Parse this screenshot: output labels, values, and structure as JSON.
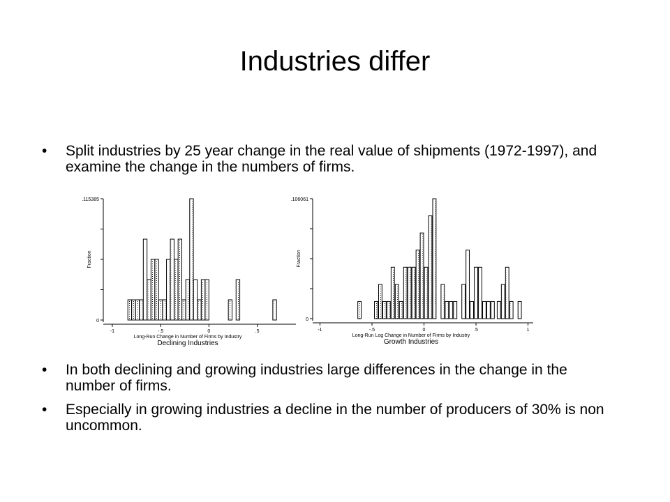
{
  "slide": {
    "title": "Industries differ",
    "bullets": [
      "Split industries by 25 year change in the real value of shipments (1972-1997), and examine the change in the numbers of firms.",
      "In both declining and growing industries large differences in the change in the number of firms.",
      "Especially in growing industries a decline in the number of producers of 30% is non uncommon."
    ]
  },
  "chart_data": [
    {
      "type": "bar",
      "ylabel": "Fraction",
      "xlabel": "Long-Run Change in Number of Firms by Industry",
      "subtitle": "Declining Industries",
      "y_tick_labels": [
        ".115385",
        "0"
      ],
      "x_tick_labels": [
        "-1",
        "-.5",
        "0",
        ".5"
      ],
      "xlim": [
        -1.05,
        0.9
      ],
      "ylim": [
        0,
        0.115385
      ],
      "bin_width": 0.0385,
      "x": [
        -0.82,
        -0.78,
        -0.74,
        -0.7,
        -0.66,
        -0.62,
        -0.58,
        -0.54,
        -0.5,
        -0.46,
        -0.42,
        -0.38,
        -0.34,
        -0.3,
        -0.26,
        -0.22,
        -0.18,
        -0.14,
        -0.1,
        -0.06,
        -0.02,
        0.02,
        0.22,
        0.3,
        0.68
      ],
      "values": [
        0.01923,
        0.01923,
        0.01923,
        0.01923,
        0.07692,
        0.03846,
        0.05769,
        0.05769,
        0.01923,
        0.01923,
        0.05769,
        0.07692,
        0.05769,
        0.07692,
        0.01923,
        0.03846,
        0.115385,
        0.03846,
        0.01923,
        0.03846,
        0.03846,
        0,
        0.01923,
        0.03846,
        0.01923
      ]
    },
    {
      "type": "bar",
      "ylabel": "Fraction",
      "xlabel": "Long-Run Log Change in Number of Firms by Industry",
      "subtitle": "Growth Industries",
      "y_tick_labels": [
        ".106061",
        "0"
      ],
      "x_tick_labels": [
        "-1",
        "-.5",
        "0",
        ".5",
        "1"
      ],
      "xlim": [
        -1.03,
        1.05
      ],
      "ylim": [
        0,
        0.106061
      ],
      "bin_width": 0.0325,
      "x": [
        -0.62,
        -0.46,
        -0.42,
        -0.38,
        -0.34,
        -0.3,
        -0.26,
        -0.22,
        -0.18,
        -0.14,
        -0.1,
        -0.06,
        -0.02,
        0.02,
        0.06,
        0.1,
        0.18,
        0.22,
        0.26,
        0.3,
        0.38,
        0.42,
        0.46,
        0.5,
        0.54,
        0.58,
        0.62,
        0.66,
        0.72,
        0.76,
        0.8,
        0.84,
        0.92
      ],
      "values": [
        0.01515,
        0.01515,
        0.0303,
        0.01515,
        0.01515,
        0.04545,
        0.0303,
        0.01515,
        0.04545,
        0.04545,
        0.04545,
        0.06061,
        0.07576,
        0.04545,
        0.0909,
        0.106061,
        0.0303,
        0.01515,
        0.01515,
        0.01515,
        0.0303,
        0.06061,
        0.01515,
        0.04545,
        0.04545,
        0.01515,
        0.01515,
        0.01515,
        0.01515,
        0.0303,
        0.04545,
        0.01515,
        0.01515
      ]
    }
  ]
}
